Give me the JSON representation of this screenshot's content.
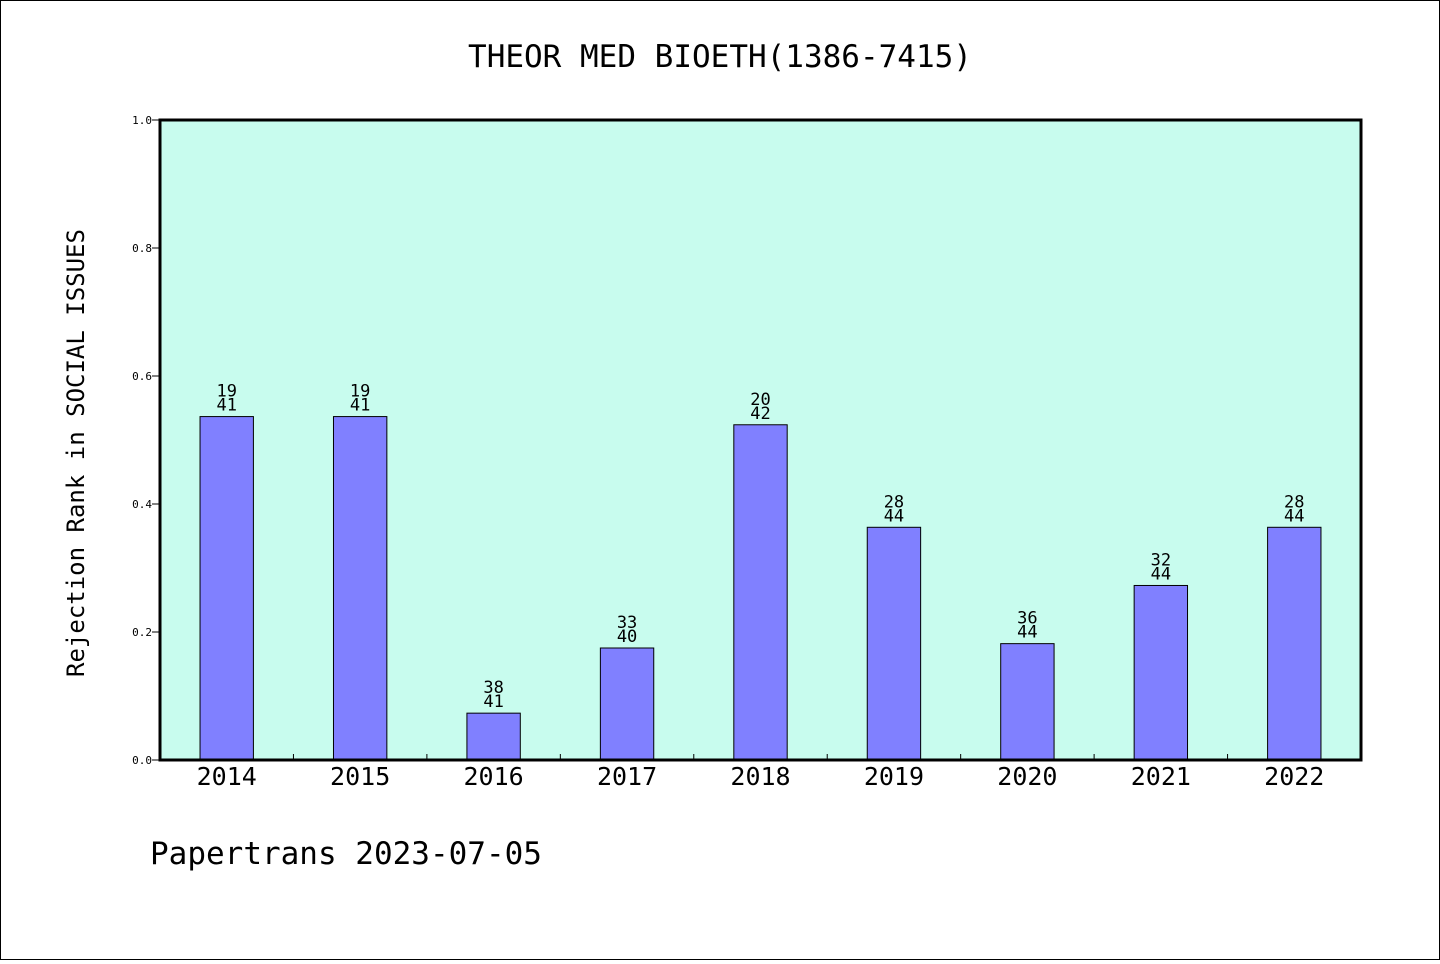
{
  "chart_data": {
    "type": "bar",
    "title": "THEOR MED BIOETH(1386-7415)",
    "xlabel": "",
    "ylabel": "Rejection Rank in SOCIAL ISSUES",
    "categories": [
      "2014",
      "2015",
      "2016",
      "2017",
      "2018",
      "2019",
      "2020",
      "2021",
      "2022"
    ],
    "values": [
      0.5366,
      0.5366,
      0.0732,
      0.175,
      0.5238,
      0.3636,
      0.1818,
      0.2727,
      0.3636
    ],
    "rank": [
      "19",
      "19",
      "38",
      "33",
      "20",
      "28",
      "36",
      "32",
      "28"
    ],
    "total": [
      "41",
      "41",
      "41",
      "40",
      "42",
      "44",
      "44",
      "44",
      "44"
    ],
    "ylim": [
      0,
      1.0
    ],
    "yticks": [
      "0.0",
      "0.2",
      "0.4",
      "0.6",
      "0.8",
      "1.0"
    ],
    "grid": false,
    "legend": "none",
    "colors": {
      "plot_background": "#c8fcee",
      "bar_fill": "#8080ff",
      "bar_stroke": "#000000",
      "frame": "#000000"
    }
  },
  "footer": {
    "credit": "Papertrans 2023-07-05"
  }
}
